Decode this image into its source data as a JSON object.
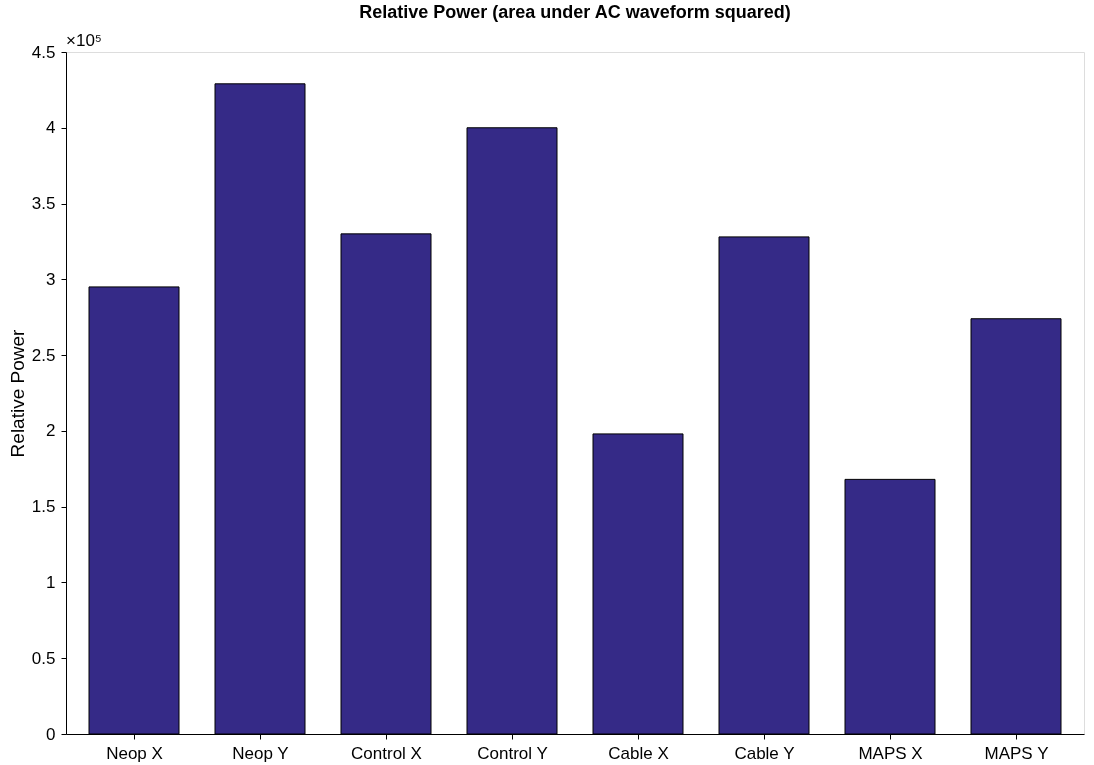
{
  "chart_data": {
    "type": "bar",
    "title": "Relative Power (area under AC waveform squared)",
    "ylabel": "Relative Power",
    "categories": [
      "Neop X",
      "Neop Y",
      "Control X",
      "Control Y",
      "Cable X",
      "Cable Y",
      "MAPS X",
      "MAPS Y"
    ],
    "values": [
      2.95,
      4.29,
      3.3,
      4.0,
      1.98,
      3.28,
      1.68,
      2.74
    ],
    "color": "#352a87",
    "ylim": [
      0,
      4.5
    ],
    "yticks": [
      0,
      0.5,
      1,
      1.5,
      2,
      2.5,
      3,
      3.5,
      4,
      4.5
    ],
    "annotations": [
      "×10⁵"
    ],
    "grid": false
  }
}
